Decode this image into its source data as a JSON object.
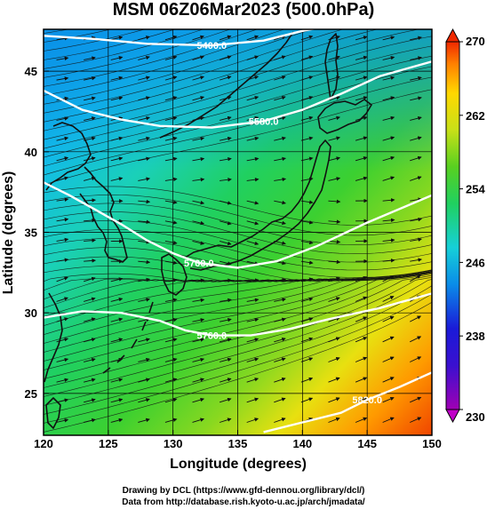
{
  "title": "MSM 06Z06Mar2023 (500.0hPa)",
  "x_axis": {
    "label": "Longitude (degrees)",
    "range": [
      120,
      150
    ],
    "ticks": [
      120,
      125,
      130,
      135,
      140,
      145,
      150
    ],
    "tick_labels": [
      "120",
      "125",
      "130",
      "135",
      "140",
      "145",
      "150"
    ]
  },
  "y_axis": {
    "label": "Latitude  (degrees)",
    "range": [
      22.4,
      47.6
    ],
    "ticks": [
      25,
      30,
      35,
      40,
      45
    ],
    "tick_labels": [
      "25",
      "30",
      "35",
      "40",
      "45"
    ]
  },
  "colorbar": {
    "min": 230,
    "max": 270,
    "ticks": [
      230,
      238,
      246,
      254,
      262,
      270
    ],
    "tick_labels": [
      "230",
      "238",
      "246",
      "254",
      "262",
      "270"
    ],
    "colors": [
      "#a000b4",
      "#1a1ad8",
      "#0a8ce8",
      "#16d0d8",
      "#20d060",
      "#58d020",
      "#c8e018",
      "#ffd800",
      "#ff8000",
      "#f02800"
    ]
  },
  "contours": [
    {
      "label": "5400.0",
      "lat": [
        47.2,
        47.0,
        46.7,
        46.6,
        46.9,
        47.5,
        47.8
      ],
      "lon": [
        120,
        124,
        128,
        133,
        137,
        140,
        142
      ]
    },
    {
      "label": "5580.0",
      "lat": [
        43.8,
        42.6,
        42.0,
        41.6,
        41.5,
        41.9,
        42.6,
        43.6,
        44.7,
        45.6
      ],
      "lon": [
        120,
        123,
        126,
        129,
        133,
        137,
        140,
        143,
        146,
        150
      ]
    },
    {
      "label": "5700.0",
      "lat": [
        38.1,
        37.3,
        36.4,
        35.5,
        34.5,
        33.7,
        33.1,
        32.8,
        33.2,
        34.1,
        35.6,
        37.3
      ],
      "lon": [
        120,
        122,
        124,
        126,
        128,
        130,
        132,
        135,
        138,
        141,
        145,
        150
      ]
    },
    {
      "label": "5760.0",
      "lat": [
        29.7,
        30.1,
        30.0,
        29.5,
        28.9,
        28.6,
        28.6,
        29.0,
        29.6,
        30.3,
        31.2
      ],
      "lon": [
        120,
        123,
        126,
        129,
        131,
        133,
        136,
        139,
        142,
        146,
        150
      ]
    },
    {
      "label": "5820.0",
      "lat": [
        22.6,
        23.2,
        23.8,
        24.6,
        25.4,
        26.3
      ],
      "lon": [
        137,
        140,
        143,
        145,
        147.5,
        150
      ]
    }
  ]
}
